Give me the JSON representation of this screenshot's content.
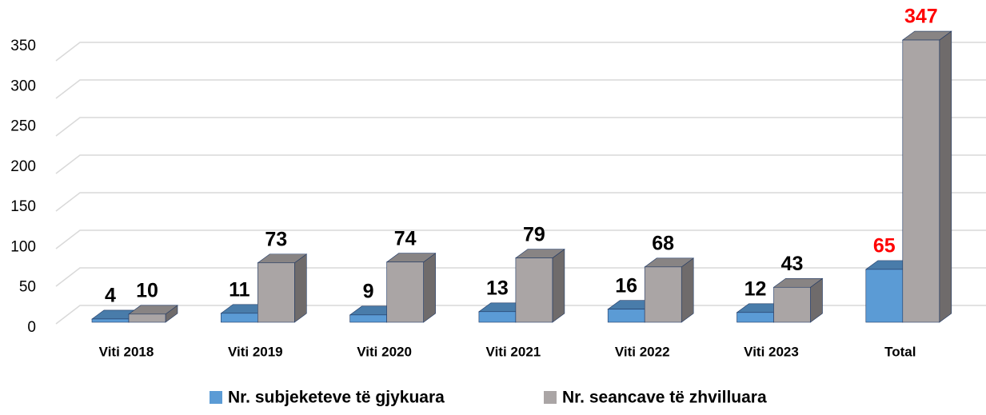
{
  "chart_data": {
    "type": "bar3d",
    "categories": [
      "Viti 2018",
      "Viti 2019",
      "Viti 2020",
      "Viti 2021",
      "Viti 2022",
      "Viti  2023",
      "Total"
    ],
    "series": [
      {
        "name": "Nr. subjeketeve të gjykuara",
        "color": "#5b9bd5",
        "values": [
          4,
          11,
          9,
          13,
          16,
          12,
          65
        ]
      },
      {
        "name": "Nr. seancave të zhvilluara",
        "color": "#aaa5a5",
        "values": [
          10,
          73,
          74,
          79,
          68,
          43,
          347
        ]
      }
    ],
    "label_colors": [
      "#000000",
      "#000000",
      "#000000",
      "#000000",
      "#000000",
      "#000000",
      "#ff0000"
    ],
    "ylim": [
      0,
      350
    ],
    "yticks": [
      0,
      50,
      100,
      150,
      200,
      250,
      300,
      350
    ],
    "grid": true,
    "legend": "bottom"
  }
}
